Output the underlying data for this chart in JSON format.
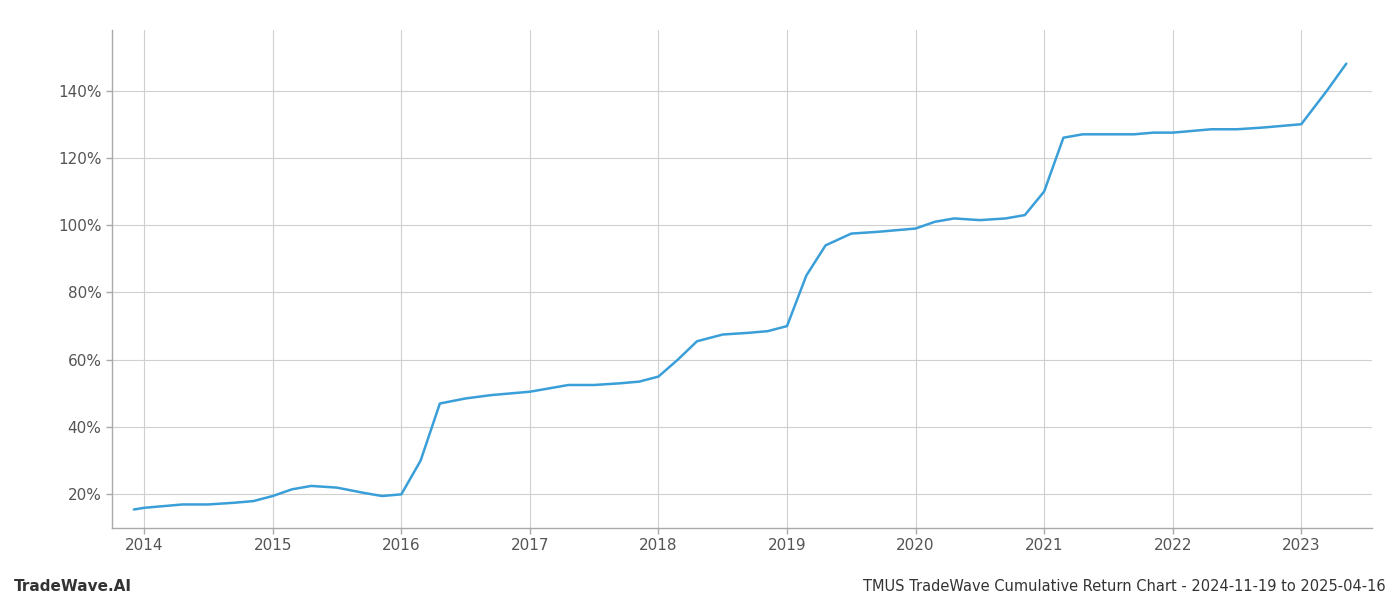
{
  "title": "TMUS TradeWave Cumulative Return Chart - 2024-11-19 to 2025-04-16",
  "watermark": "TradeWave.AI",
  "line_color": "#3a9fd8",
  "background_color": "#ffffff",
  "grid_color": "#d0d0d0",
  "x_values": [
    2013.92,
    2014.0,
    2014.15,
    2014.3,
    2014.5,
    2014.7,
    2014.85,
    2015.0,
    2015.15,
    2015.3,
    2015.5,
    2015.7,
    2015.85,
    2016.0,
    2016.15,
    2016.3,
    2016.5,
    2016.7,
    2016.85,
    2017.0,
    2017.15,
    2017.3,
    2017.5,
    2017.7,
    2017.85,
    2018.0,
    2018.15,
    2018.3,
    2018.5,
    2018.7,
    2018.85,
    2019.0,
    2019.15,
    2019.3,
    2019.5,
    2019.7,
    2019.85,
    2020.0,
    2020.15,
    2020.3,
    2020.5,
    2020.7,
    2020.85,
    2021.0,
    2021.15,
    2021.3,
    2021.5,
    2021.7,
    2021.85,
    2022.0,
    2022.15,
    2022.3,
    2022.5,
    2022.7,
    2022.85,
    2023.0,
    2023.2,
    2023.35
  ],
  "y_values": [
    15.5,
    16.0,
    16.5,
    17.0,
    17.0,
    17.5,
    18.0,
    19.5,
    21.5,
    22.5,
    22.0,
    20.5,
    19.5,
    20.0,
    30.0,
    47.0,
    48.5,
    49.5,
    50.0,
    50.5,
    51.5,
    52.5,
    52.5,
    53.0,
    53.5,
    55.0,
    60.0,
    65.5,
    67.5,
    68.0,
    68.5,
    70.0,
    85.0,
    94.0,
    97.5,
    98.0,
    98.5,
    99.0,
    101.0,
    102.0,
    101.5,
    102.0,
    103.0,
    110.0,
    126.0,
    127.0,
    127.0,
    127.0,
    127.5,
    127.5,
    128.0,
    128.5,
    128.5,
    129.0,
    129.5,
    130.0,
    140.0,
    148.0
  ],
  "xlim": [
    2013.75,
    2023.55
  ],
  "ylim": [
    10,
    158
  ],
  "yticks": [
    20,
    40,
    60,
    80,
    100,
    120,
    140
  ],
  "ytick_labels": [
    "20%",
    "40%",
    "60%",
    "80%",
    "100%",
    "120%",
    "140%"
  ],
  "xticks": [
    2014,
    2015,
    2016,
    2017,
    2018,
    2019,
    2020,
    2021,
    2022,
    2023
  ],
  "xtick_labels": [
    "2014",
    "2015",
    "2016",
    "2017",
    "2018",
    "2019",
    "2020",
    "2021",
    "2022",
    "2023"
  ],
  "line_width": 1.8,
  "title_fontsize": 10.5,
  "tick_fontsize": 11,
  "watermark_fontsize": 11
}
